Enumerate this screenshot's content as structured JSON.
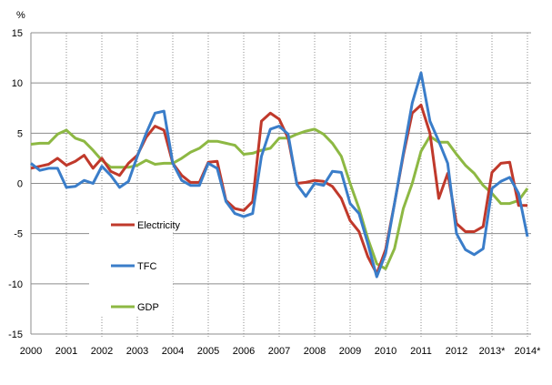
{
  "chart_data": {
    "type": "line",
    "title": "",
    "ylabel": "%",
    "xlabel": "",
    "ylim": [
      -15,
      15
    ],
    "yticks": [
      "15",
      "10",
      "5",
      "0",
      "-5",
      "-10",
      "-15"
    ],
    "xtick_labels": [
      "2000",
      "2001",
      "2002",
      "2003",
      "2004",
      "2005",
      "2006",
      "2007",
      "2008",
      "2009",
      "2010",
      "2011",
      "2012",
      "2013*",
      "2014*"
    ],
    "x_start": "2000Q1",
    "x_end": "2014Q1",
    "frequency": "quarterly",
    "grid": {
      "horizontal": "solid",
      "vertical": "dotted"
    },
    "legend_placement": "inline, lower-left",
    "series": [
      {
        "name": "Electricity",
        "color": "#c0392b",
        "values": [
          1.5,
          1.7,
          1.9,
          2.5,
          1.8,
          2.2,
          2.8,
          1.5,
          2.5,
          1.2,
          0.8,
          2.0,
          2.8,
          4.6,
          5.7,
          5.3,
          2.0,
          0.8,
          0.1,
          0.1,
          2.1,
          2.2,
          -1.7,
          -2.5,
          -2.7,
          -1.8,
          6.2,
          7.0,
          6.4,
          4.5,
          0.0,
          0.1,
          0.3,
          0.2,
          -0.3,
          -1.5,
          -3.7,
          -4.8,
          -7.3,
          -9.0,
          -6.6,
          -2.0,
          2.8,
          7.0,
          7.8,
          5.0,
          -1.5,
          1.0,
          -4.0,
          -4.8,
          -4.8,
          -4.3,
          1.1,
          2.0,
          2.1,
          -2.2,
          -2.2
        ]
      },
      {
        "name": "TFC",
        "color": "#3a7dc9",
        "values": [
          2.0,
          1.3,
          1.5,
          1.5,
          -0.4,
          -0.3,
          0.3,
          0.0,
          1.7,
          0.8,
          -0.4,
          0.2,
          2.7,
          5.0,
          7.0,
          7.2,
          2.0,
          0.3,
          -0.2,
          -0.2,
          2.0,
          1.5,
          -1.8,
          -3.0,
          -3.3,
          -3.0,
          2.7,
          5.4,
          5.7,
          4.9,
          -0.1,
          -1.3,
          0.0,
          -0.2,
          1.2,
          1.1,
          -2.0,
          -3.0,
          -6.0,
          -9.3,
          -7.0,
          -2.0,
          3.0,
          8.0,
          11.0,
          6.2,
          4.2,
          2.0,
          -5.0,
          -6.6,
          -7.1,
          -6.5,
          -0.5,
          0.2,
          0.6,
          -1.0,
          -5.3
        ]
      },
      {
        "name": "GDP",
        "color": "#8db843",
        "values": [
          3.9,
          4.0,
          4.0,
          4.9,
          5.3,
          4.5,
          4.2,
          3.3,
          2.3,
          1.6,
          1.6,
          1.6,
          1.8,
          2.3,
          1.9,
          2.0,
          2.0,
          2.5,
          3.1,
          3.5,
          4.2,
          4.2,
          4.0,
          3.8,
          2.9,
          3.0,
          3.3,
          3.5,
          4.5,
          4.5,
          4.9,
          5.2,
          5.4,
          4.9,
          4.0,
          2.7,
          0.0,
          -2.5,
          -5.5,
          -8.0,
          -8.5,
          -6.5,
          -2.5,
          0.0,
          3.2,
          4.7,
          4.1,
          4.1,
          2.9,
          1.8,
          1.0,
          -0.2,
          -1.0,
          -2.0,
          -2.0,
          -1.7,
          -0.5
        ]
      }
    ]
  }
}
